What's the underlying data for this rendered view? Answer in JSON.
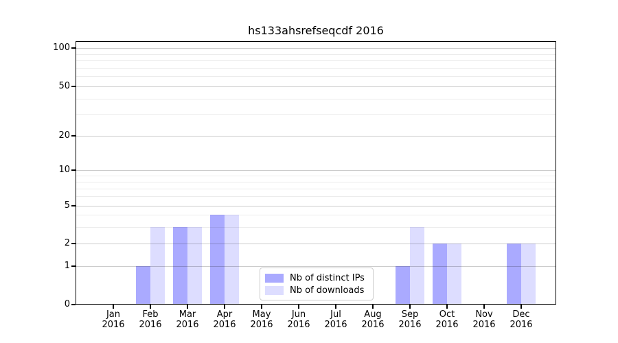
{
  "chart_data": {
    "type": "bar",
    "title": "hs133ahsrefseqcdf 2016",
    "categories": [
      "Jan 2016",
      "Feb 2016",
      "Mar 2016",
      "Apr 2016",
      "May 2016",
      "Jun 2016",
      "Jul 2016",
      "Aug 2016",
      "Sep 2016",
      "Oct 2016",
      "Nov 2016",
      "Dec 2016"
    ],
    "series": [
      {
        "name": "Nb of distinct IPs",
        "color": "#aaaaff",
        "values": [
          0,
          1,
          3,
          4,
          0,
          0,
          0,
          0,
          1,
          2,
          0,
          2
        ]
      },
      {
        "name": "Nb of downloads",
        "color": "#ddddff",
        "values": [
          0,
          3,
          3,
          4,
          0,
          0,
          0,
          0,
          3,
          2,
          0,
          2
        ]
      }
    ],
    "xlabel": "",
    "ylabel": "",
    "yscale": "log-like",
    "yticks": [
      0,
      1,
      2,
      5,
      10,
      20,
      50,
      100
    ],
    "ylim": [
      0,
      120
    ],
    "grid": "horizontal major and log-minor gridlines",
    "legend_position": "lower center"
  }
}
